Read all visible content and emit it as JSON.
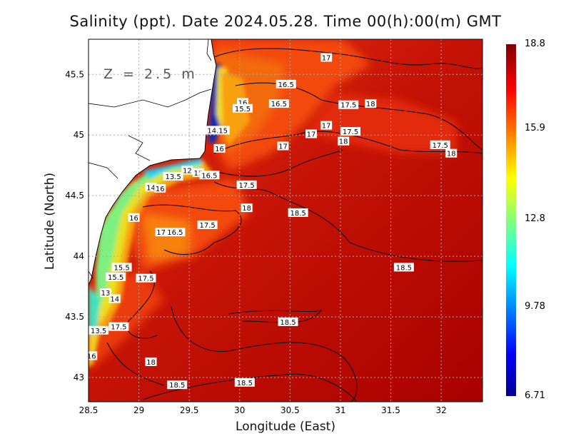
{
  "title": "Salinity (ppt). Date 2024.05.28. Time 00(h):00(m) GMT",
  "annotation": "Z = 2.5 m",
  "chart_data": {
    "type": "heatmap",
    "title": "Salinity (ppt). Date 2024.05.28. Time 00(h):00(m) GMT",
    "xlabel": "Longitude (East)",
    "ylabel": "Latitude (North)",
    "xlim": [
      28.5,
      32.41
    ],
    "ylim": [
      42.8,
      45.79
    ],
    "xticks": [
      28.5,
      29,
      29.5,
      30,
      30.5,
      31,
      31.5,
      32
    ],
    "xtick_labels": [
      "28.5",
      "29",
      "29.5",
      "30",
      "30.5",
      "31",
      "31.5",
      "32"
    ],
    "yticks": [
      43,
      43.5,
      44,
      44.5,
      45,
      45.5
    ],
    "ytick_labels": [
      "43",
      "43.5",
      "44",
      "44.5",
      "45",
      "45.5"
    ],
    "grid": true,
    "colorscale": "jet",
    "colorbar": {
      "min": 6.71,
      "max": 18.8,
      "tick_labels": [
        "18.8",
        "15.9",
        "12.8",
        "9.78",
        "6.71"
      ],
      "ticks": [
        18.8,
        15.9,
        12.8,
        9.78,
        6.71
      ]
    },
    "contour_labels": [
      {
        "text": "17",
        "lon": 30.86,
        "lat": 45.64
      },
      {
        "text": "16.5",
        "lon": 30.46,
        "lat": 45.42
      },
      {
        "text": "16.5",
        "lon": 30.39,
        "lat": 45.26
      },
      {
        "text": "16",
        "lon": 30.03,
        "lat": 45.27
      },
      {
        "text": "15.5",
        "lon": 30.03,
        "lat": 45.22
      },
      {
        "text": "17.5",
        "lon": 31.08,
        "lat": 45.25
      },
      {
        "text": "18",
        "lon": 31.3,
        "lat": 45.26
      },
      {
        "text": "17",
        "lon": 30.86,
        "lat": 45.08
      },
      {
        "text": "17.5",
        "lon": 31.1,
        "lat": 45.03
      },
      {
        "text": "17",
        "lon": 30.71,
        "lat": 45.01
      },
      {
        "text": "18",
        "lon": 31.03,
        "lat": 44.95
      },
      {
        "text": "14.15",
        "lon": 29.78,
        "lat": 45.04
      },
      {
        "text": "17",
        "lon": 30.43,
        "lat": 44.91
      },
      {
        "text": "16",
        "lon": 29.8,
        "lat": 44.89
      },
      {
        "text": "17.5",
        "lon": 31.99,
        "lat": 44.92
      },
      {
        "text": "18",
        "lon": 32.1,
        "lat": 44.85
      },
      {
        "text": "13.5",
        "lon": 29.34,
        "lat": 44.66
      },
      {
        "text": "12",
        "lon": 29.48,
        "lat": 44.71
      },
      {
        "text": "15",
        "lon": 29.59,
        "lat": 44.69
      },
      {
        "text": "16.5",
        "lon": 29.7,
        "lat": 44.67
      },
      {
        "text": "17.5",
        "lon": 30.07,
        "lat": 44.59
      },
      {
        "text": "14",
        "lon": 29.12,
        "lat": 44.57
      },
      {
        "text": "16",
        "lon": 29.21,
        "lat": 44.56
      },
      {
        "text": "18",
        "lon": 30.07,
        "lat": 44.4
      },
      {
        "text": "18.5",
        "lon": 30.58,
        "lat": 44.36
      },
      {
        "text": "16",
        "lon": 28.95,
        "lat": 44.32
      },
      {
        "text": "17.5",
        "lon": 29.68,
        "lat": 44.26
      },
      {
        "text": "17",
        "lon": 29.22,
        "lat": 44.2
      },
      {
        "text": "16.5",
        "lon": 29.36,
        "lat": 44.2
      },
      {
        "text": "18.5",
        "lon": 31.63,
        "lat": 43.91
      },
      {
        "text": "15.5",
        "lon": 28.83,
        "lat": 43.91
      },
      {
        "text": "15.5",
        "lon": 28.77,
        "lat": 43.83
      },
      {
        "text": "17.5",
        "lon": 29.07,
        "lat": 43.82
      },
      {
        "text": "13",
        "lon": 28.67,
        "lat": 43.7
      },
      {
        "text": "14",
        "lon": 28.76,
        "lat": 43.65
      },
      {
        "text": "18.5",
        "lon": 30.48,
        "lat": 43.46
      },
      {
        "text": "13.5",
        "lon": 28.6,
        "lat": 43.39
      },
      {
        "text": "17.5",
        "lon": 28.8,
        "lat": 43.42
      },
      {
        "text": "16",
        "lon": 28.53,
        "lat": 43.18
      },
      {
        "text": "18",
        "lon": 29.12,
        "lat": 43.13
      },
      {
        "text": "18.5",
        "lon": 29.38,
        "lat": 42.94
      },
      {
        "text": "18.5",
        "lon": 30.05,
        "lat": 42.96
      }
    ]
  }
}
